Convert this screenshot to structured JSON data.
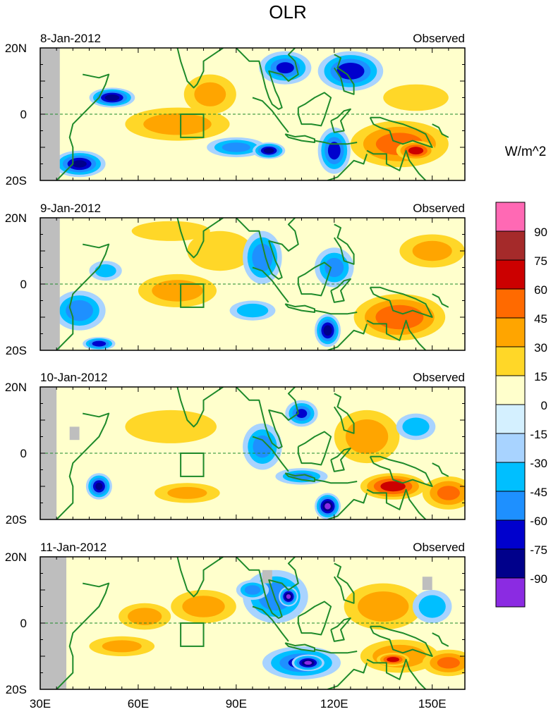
{
  "chart_data": {
    "type": "heatmap",
    "title": "OLR",
    "units": "W/m^2",
    "x_ticks": [
      "30E",
      "60E",
      "90E",
      "120E",
      "150E"
    ],
    "x_tick_values": [
      30,
      60,
      90,
      120,
      150
    ],
    "xlim": [
      30,
      160
    ],
    "ylim": [
      -20,
      20
    ],
    "y_ticks": [
      "20S",
      "0",
      "20N"
    ],
    "y_tick_values": [
      -20,
      0,
      20
    ],
    "colorbar": {
      "levels": [
        "-90",
        "-75",
        "-60",
        "-45",
        "-30",
        "-15",
        "0",
        "15",
        "30",
        "45",
        "60",
        "75",
        "90"
      ],
      "colors": [
        "#8b2be2",
        "#00008b",
        "#0000cd",
        "#1e90ff",
        "#00bfff",
        "#a8d3ff",
        "#d4f0ff",
        "#ffffcc",
        "#ffd728",
        "#ffa500",
        "#ff6a00",
        "#cc0000",
        "#a52a2a",
        "#ff69b4"
      ]
    },
    "panels": [
      {
        "date": "8-Jan-2012",
        "label": "Observed",
        "blobs": [
          {
            "lon": 52,
            "lat": 5,
            "rx": 7,
            "ry": 3,
            "v": -80
          },
          {
            "lon": 42,
            "lat": -15,
            "rx": 8,
            "ry": 4,
            "v": -75
          },
          {
            "lon": 72,
            "lat": -3,
            "rx": 16,
            "ry": 5,
            "v": 35
          },
          {
            "lon": 82,
            "lat": 6,
            "rx": 8,
            "ry": 6,
            "v": 30
          },
          {
            "lon": 90,
            "lat": -10,
            "rx": 9,
            "ry": 3,
            "v": -50
          },
          {
            "lon": 100,
            "lat": -11,
            "rx": 5,
            "ry": 2.5,
            "v": -80
          },
          {
            "lon": 105,
            "lat": 14,
            "rx": 8,
            "ry": 5,
            "v": -60
          },
          {
            "lon": 125,
            "lat": 13,
            "rx": 10,
            "ry": 6,
            "v": -70
          },
          {
            "lon": 120,
            "lat": -11,
            "rx": 5,
            "ry": 7,
            "v": -65
          },
          {
            "lon": 140,
            "lat": -9,
            "rx": 15,
            "ry": 7,
            "v": 50
          },
          {
            "lon": 145,
            "lat": 5,
            "rx": 10,
            "ry": 4,
            "v": 20
          },
          {
            "lon": 145,
            "lat": -11,
            "rx": 6,
            "ry": 3,
            "v": 65
          }
        ]
      },
      {
        "date": "9-Jan-2012",
        "label": "Observed",
        "blobs": [
          {
            "lon": 42,
            "lat": -8,
            "rx": 8,
            "ry": 6,
            "v": -55
          },
          {
            "lon": 50,
            "lat": 4,
            "rx": 5,
            "ry": 3,
            "v": -35
          },
          {
            "lon": 72,
            "lat": -2,
            "rx": 12,
            "ry": 5,
            "v": 35
          },
          {
            "lon": 85,
            "lat": 10,
            "rx": 10,
            "ry": 6,
            "v": 25
          },
          {
            "lon": 70,
            "lat": 16,
            "rx": 12,
            "ry": 3,
            "v": 25
          },
          {
            "lon": 98,
            "lat": 8,
            "rx": 6,
            "ry": 8,
            "v": -55
          },
          {
            "lon": 95,
            "lat": -8,
            "rx": 7,
            "ry": 3,
            "v": -40
          },
          {
            "lon": 118,
            "lat": -14,
            "rx": 4,
            "ry": 5,
            "v": -80
          },
          {
            "lon": 120,
            "lat": 5,
            "rx": 6,
            "ry": 6,
            "v": -50
          },
          {
            "lon": 140,
            "lat": -10,
            "rx": 14,
            "ry": 7,
            "v": 55
          },
          {
            "lon": 150,
            "lat": 10,
            "rx": 10,
            "ry": 5,
            "v": 30
          },
          {
            "lon": 48,
            "lat": -18,
            "rx": 5,
            "ry": 2,
            "v": -70
          }
        ]
      },
      {
        "date": "10-Jan-2012",
        "label": "Observed",
        "blobs": [
          {
            "lon": 48,
            "lat": -10,
            "rx": 4,
            "ry": 4,
            "v": -75
          },
          {
            "lon": 70,
            "lat": 8,
            "rx": 14,
            "ry": 5,
            "v": 25
          },
          {
            "lon": 75,
            "lat": -12,
            "rx": 10,
            "ry": 3,
            "v": 30
          },
          {
            "lon": 98,
            "lat": 2,
            "rx": 6,
            "ry": 7,
            "v": -50
          },
          {
            "lon": 110,
            "lat": 12,
            "rx": 5,
            "ry": 4,
            "v": -60
          },
          {
            "lon": 118,
            "lat": -16,
            "rx": 4,
            "ry": 4,
            "v": -90
          },
          {
            "lon": 130,
            "lat": 5,
            "rx": 10,
            "ry": 8,
            "v": 35
          },
          {
            "lon": 138,
            "lat": -10,
            "rx": 10,
            "ry": 4,
            "v": 65
          },
          {
            "lon": 155,
            "lat": -12,
            "rx": 8,
            "ry": 5,
            "v": 45
          },
          {
            "lon": 145,
            "lat": 8,
            "rx": 6,
            "ry": 4,
            "v": -40
          },
          {
            "lon": 110,
            "lat": -7,
            "rx": 8,
            "ry": 2.5,
            "v": -45
          }
        ]
      },
      {
        "date": "11-Jan-2012",
        "label": "Observed",
        "blobs": [
          {
            "lon": 62,
            "lat": 2,
            "rx": 8,
            "ry": 4,
            "v": 35
          },
          {
            "lon": 80,
            "lat": 5,
            "rx": 10,
            "ry": 5,
            "v": 35
          },
          {
            "lon": 55,
            "lat": -7,
            "rx": 10,
            "ry": 3,
            "v": 30
          },
          {
            "lon": 102,
            "lat": 8,
            "rx": 10,
            "ry": 8,
            "v": -55
          },
          {
            "lon": 106,
            "lat": 8,
            "rx": 3,
            "ry": 3,
            "v": -90
          },
          {
            "lon": 110,
            "lat": -12,
            "rx": 12,
            "ry": 5,
            "v": -60
          },
          {
            "lon": 112,
            "lat": -12,
            "rx": 5,
            "ry": 2.5,
            "v": -90
          },
          {
            "lon": 95,
            "lat": 10,
            "rx": 5,
            "ry": 3,
            "v": -50
          },
          {
            "lon": 135,
            "lat": 5,
            "rx": 12,
            "ry": 7,
            "v": 35
          },
          {
            "lon": 140,
            "lat": -10,
            "rx": 12,
            "ry": 5,
            "v": 40
          },
          {
            "lon": 138,
            "lat": -11,
            "rx": 5,
            "ry": 2,
            "v": 65
          },
          {
            "lon": 150,
            "lat": 5,
            "rx": 6,
            "ry": 5,
            "v": -40
          },
          {
            "lon": 155,
            "lat": -12,
            "rx": 8,
            "ry": 4,
            "v": 45
          }
        ]
      }
    ]
  }
}
